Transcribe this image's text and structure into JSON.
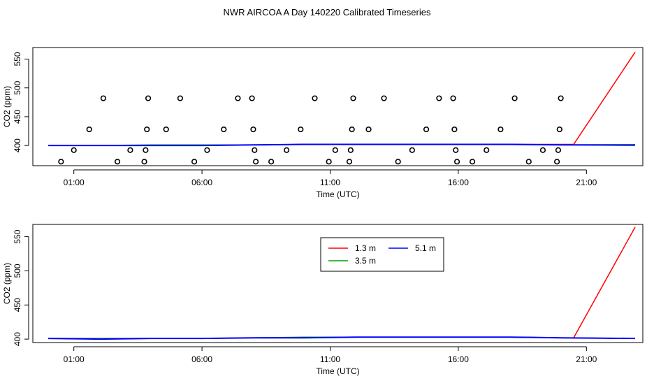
{
  "figure": {
    "title": "NWR AIRCOA A  Day 140220  Calibrated Timeseries"
  },
  "chart_data": [
    {
      "type": "scatter",
      "xlabel": "Time (UTC)",
      "ylabel": "CO2 (ppm)",
      "xlim": [
        -0.6,
        23.2
      ],
      "ylim": [
        365,
        570
      ],
      "x_ticks": [
        1,
        6,
        11,
        16,
        21
      ],
      "x_tick_labels": [
        "01:00",
        "06:00",
        "11:00",
        "16:00",
        "21:00"
      ],
      "y_ticks": [
        400,
        450,
        500,
        550
      ],
      "y_tick_labels": [
        "400",
        "450",
        "500",
        "550"
      ],
      "grid": false,
      "points": {
        "marker": "open-circle",
        "color": "#000000",
        "x": [
          0.5,
          1.0,
          1.6,
          2.15,
          2.7,
          3.2,
          3.75,
          3.8,
          3.85,
          3.9,
          4.6,
          5.15,
          5.7,
          6.2,
          6.85,
          7.4,
          7.95,
          8.0,
          8.05,
          8.1,
          8.7,
          9.3,
          9.85,
          10.4,
          10.95,
          11.2,
          11.75,
          11.8,
          11.85,
          11.9,
          12.5,
          13.1,
          13.65,
          14.2,
          14.75,
          15.25,
          15.8,
          15.85,
          15.9,
          15.95,
          16.55,
          17.1,
          17.65,
          18.2,
          18.75,
          19.3,
          19.85,
          19.9,
          19.95,
          20.0
        ],
        "y": [
          372,
          392,
          428,
          482,
          372,
          392,
          372,
          392,
          428,
          482,
          428,
          482,
          372,
          392,
          428,
          482,
          482,
          428,
          392,
          372,
          372,
          392,
          428,
          482,
          372,
          392,
          372,
          392,
          428,
          482,
          428,
          482,
          372,
          392,
          428,
          482,
          482,
          428,
          392,
          372,
          372,
          392,
          428,
          482,
          372,
          392,
          372,
          392,
          428,
          482
        ]
      },
      "series": [
        {
          "name": "1.3 m",
          "color": "#ff0000",
          "x": [
            0.0,
            2.0,
            4.0,
            6.0,
            8.0,
            10.0,
            12.0,
            14.0,
            16.0,
            18.0,
            20.0,
            20.5,
            22.9
          ],
          "y": [
            400,
            400,
            400,
            401,
            401,
            402,
            402,
            402,
            402,
            402,
            402,
            402,
            562
          ]
        },
        {
          "name": "3.5 m",
          "color": "#00a000",
          "x": [
            0.0,
            2.0,
            4.0,
            6.0,
            8.0,
            10.0,
            12.0,
            14.0,
            16.0,
            18.0,
            20.0,
            22.9
          ],
          "y": [
            400,
            400,
            401,
            401,
            401,
            402,
            402,
            402,
            402,
            402,
            401,
            400
          ]
        },
        {
          "name": "5.1 m",
          "color": "#0000ff",
          "x": [
            0.0,
            2.0,
            4.0,
            6.0,
            8.0,
            10.0,
            12.0,
            14.0,
            16.0,
            18.0,
            20.0,
            22.9
          ],
          "y": [
            400,
            400,
            400,
            400,
            401,
            402,
            402,
            402,
            402,
            402,
            401,
            401
          ]
        }
      ]
    },
    {
      "type": "line",
      "xlabel": "Time (UTC)",
      "ylabel": "CO2 (ppm)",
      "xlim": [
        -0.6,
        23.2
      ],
      "ylim": [
        395,
        568
      ],
      "x_ticks": [
        1,
        6,
        11,
        16,
        21
      ],
      "x_tick_labels": [
        "01:00",
        "06:00",
        "11:00",
        "16:00",
        "21:00"
      ],
      "y_ticks": [
        400,
        450,
        500,
        550
      ],
      "y_tick_labels": [
        "400",
        "450",
        "500",
        "550"
      ],
      "grid": false,
      "legend": {
        "placement": "top-center",
        "entries": [
          "1.3 m",
          "5.1 m",
          "3.5 m"
        ]
      },
      "series": [
        {
          "name": "1.3 m",
          "color": "#ff0000",
          "x": [
            0.0,
            2.0,
            4.0,
            6.0,
            8.0,
            10.0,
            12.0,
            14.0,
            16.0,
            18.0,
            20.0,
            20.5,
            22.9
          ],
          "y": [
            401,
            401,
            401,
            401,
            402,
            402,
            403,
            403,
            403,
            403,
            402,
            402,
            564
          ]
        },
        {
          "name": "3.5 m",
          "color": "#00a000",
          "x": [
            0.0,
            2.0,
            4.0,
            6.0,
            8.0,
            10.0,
            12.0,
            14.0,
            16.0,
            18.0,
            20.0,
            22.9
          ],
          "y": [
            401,
            401,
            401,
            401,
            402,
            403,
            403,
            403,
            403,
            403,
            402,
            401
          ]
        },
        {
          "name": "5.1 m",
          "color": "#0000ff",
          "x": [
            0.0,
            2.0,
            4.0,
            6.0,
            8.0,
            10.0,
            12.0,
            14.0,
            16.0,
            18.0,
            20.0,
            22.9
          ],
          "y": [
            401,
            400,
            401,
            401,
            402,
            402,
            403,
            403,
            403,
            403,
            402,
            401
          ]
        }
      ]
    }
  ]
}
